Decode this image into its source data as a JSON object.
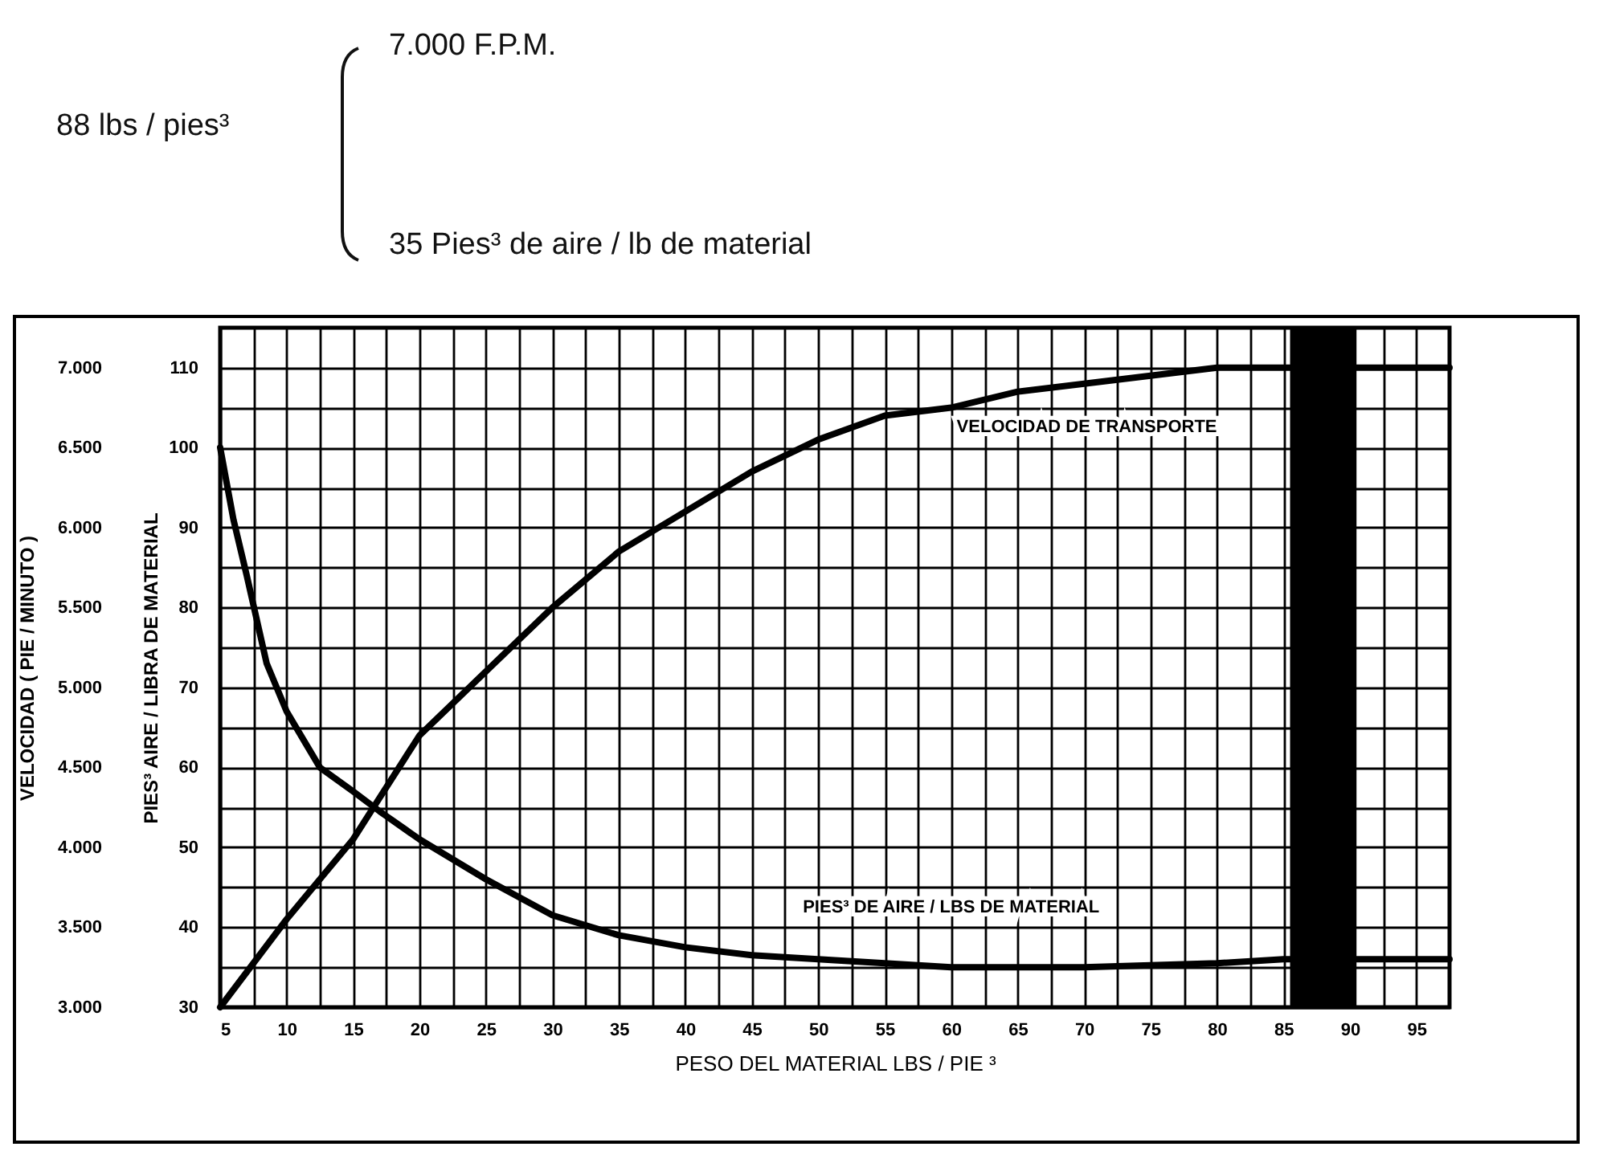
{
  "chart_data": {
    "type": "line",
    "annotations": [
      "88 lbs / pies³",
      "7.000 F.P.M.",
      "35 Pies³ de aire / lb de material"
    ],
    "xlabel": "PESO DEL MATERIAL LBS / PIE ³",
    "ylabel": "PIES³ AIRE / LIBRA DE MATERIAL",
    "y2label": "VELOCIDAD ( PIE / MINUTO )",
    "series": [
      {
        "name": "PIES³ DE AIRE / LBS DE MATERIAL",
        "color": "#000000",
        "x": [
          5,
          6,
          7,
          8.5,
          10,
          12.5,
          15,
          17,
          20,
          25,
          30,
          35,
          40,
          45,
          50,
          55,
          60,
          70,
          80,
          85,
          97.5
        ],
        "values": [
          100,
          91,
          84,
          73,
          67,
          60,
          57,
          54.5,
          51,
          46,
          41.5,
          39,
          37.5,
          36.5,
          36,
          35.5,
          35,
          35,
          35.5,
          36,
          36
        ]
      },
      {
        "name": "VELOCIDAD DE TRANSPORTE",
        "color": "#000000",
        "axis": "y2",
        "x": [
          5,
          10,
          15,
          20,
          25,
          30,
          35,
          40,
          45,
          50,
          55,
          60,
          65,
          70,
          75,
          80,
          85,
          97.5
        ],
        "values": [
          3000,
          3550,
          4050,
          4700,
          5100,
          5500,
          5850,
          6100,
          6350,
          6550,
          6700,
          6750,
          6850,
          6900,
          6950,
          7000,
          7000,
          7000
        ]
      }
    ],
    "xlim": [
      5,
      97.5
    ],
    "xticks": [
      5,
      {
        "value": 7.5,
        "label": null
      },
      10,
      {
        "value": 12.5,
        "label": null
      },
      15,
      {
        "value": 17.5,
        "label": null
      },
      20,
      {
        "value": 22.5,
        "label": null
      },
      25,
      {
        "value": 27.5,
        "label": null
      },
      30,
      {
        "value": 32.5,
        "label": null
      },
      35,
      {
        "value": 37.5,
        "label": null
      },
      40,
      {
        "value": 42.5,
        "label": null
      },
      45,
      {
        "value": 47.5,
        "label": null
      },
      50,
      {
        "value": 52.5,
        "label": null
      },
      55,
      {
        "value": 57.5,
        "label": null
      },
      60,
      {
        "value": 62.5,
        "label": null
      },
      65,
      {
        "value": 67.5,
        "label": null
      },
      70,
      {
        "value": 72.5,
        "label": null
      },
      75,
      {
        "value": 77.5,
        "label": null
      },
      80,
      {
        "value": 82.5,
        "label": null
      },
      85,
      90,
      {
        "value": 92.5,
        "label": null
      },
      95
    ],
    "ylim": [
      30,
      115
    ],
    "yticks": [
      30,
      {
        "value": 35,
        "label": null
      },
      40,
      {
        "value": 45,
        "label": null
      },
      50,
      {
        "value": 55,
        "label": null
      },
      60,
      {
        "value": 65,
        "label": null
      },
      70,
      {
        "value": 75,
        "label": null
      },
      80,
      {
        "value": 85,
        "label": null
      },
      90,
      {
        "value": 95,
        "label": null
      },
      100,
      {
        "value": 105,
        "label": null
      },
      110
    ],
    "y2lim": [
      3000,
      7250
    ],
    "y2ticks": [
      {
        "value": 3000,
        "label": "3.000"
      },
      {
        "value": 3500,
        "label": "3.500"
      },
      {
        "value": 4000,
        "label": "4.000"
      },
      {
        "value": 4500,
        "label": "4.500"
      },
      {
        "value": 5000,
        "label": "5.000"
      },
      {
        "value": 5500,
        "label": "5.500"
      },
      {
        "value": 6000,
        "label": "6.000"
      },
      {
        "value": 6500,
        "label": "6.500"
      },
      {
        "value": 7000,
        "label": "7.000"
      }
    ],
    "bands": [
      {
        "axis": "x",
        "from": 85.5,
        "to": 90.5,
        "color": "#000000"
      }
    ],
    "grid": true,
    "marker": "none",
    "line_style": "solid"
  }
}
